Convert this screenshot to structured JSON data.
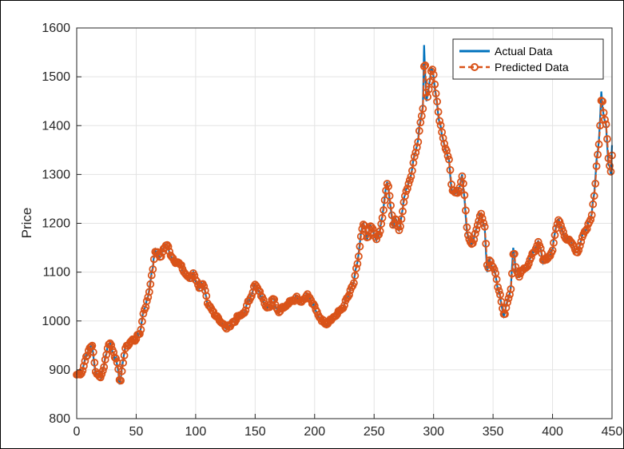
{
  "chart_data": {
    "type": "line",
    "title": "",
    "xlabel": "",
    "ylabel": "Price",
    "xlim": [
      0,
      450
    ],
    "ylim": [
      800,
      1600
    ],
    "xticks": [
      0,
      50,
      100,
      150,
      200,
      250,
      300,
      350,
      400,
      450
    ],
    "yticks": [
      800,
      900,
      1000,
      1100,
      1200,
      1300,
      1400,
      1500,
      1600
    ],
    "grid": true,
    "legend_position": "top-right",
    "series": [
      {
        "name": "Actual Data",
        "color": "#0072BD",
        "style": "solid-line",
        "anchors": [
          [
            0,
            890
          ],
          [
            4,
            895
          ],
          [
            8,
            930
          ],
          [
            11,
            945
          ],
          [
            13,
            950
          ],
          [
            16,
            890
          ],
          [
            19,
            885
          ],
          [
            22,
            900
          ],
          [
            26,
            950
          ],
          [
            28,
            955
          ],
          [
            31,
            935
          ],
          [
            34,
            910
          ],
          [
            36,
            870
          ],
          [
            38,
            905
          ],
          [
            40,
            935
          ],
          [
            42,
            950
          ],
          [
            46,
            960
          ],
          [
            50,
            965
          ],
          [
            53,
            975
          ],
          [
            56,
            1020
          ],
          [
            60,
            1050
          ],
          [
            63,
            1100
          ],
          [
            66,
            1145
          ],
          [
            70,
            1130
          ],
          [
            73,
            1150
          ],
          [
            76,
            1155
          ],
          [
            80,
            1130
          ],
          [
            85,
            1120
          ],
          [
            90,
            1100
          ],
          [
            95,
            1085
          ],
          [
            98,
            1100
          ],
          [
            102,
            1070
          ],
          [
            106,
            1075
          ],
          [
            110,
            1030
          ],
          [
            114,
            1020
          ],
          [
            118,
            1010
          ],
          [
            122,
            995
          ],
          [
            125,
            985
          ],
          [
            130,
            995
          ],
          [
            134,
            1005
          ],
          [
            138,
            1010
          ],
          [
            142,
            1025
          ],
          [
            146,
            1050
          ],
          [
            149,
            1075
          ],
          [
            153,
            1060
          ],
          [
            157,
            1040
          ],
          [
            161,
            1030
          ],
          [
            165,
            1045
          ],
          [
            169,
            1020
          ],
          [
            173,
            1030
          ],
          [
            177,
            1035
          ],
          [
            181,
            1045
          ],
          [
            185,
            1050
          ],
          [
            189,
            1040
          ],
          [
            193,
            1055
          ],
          [
            197,
            1040
          ],
          [
            201,
            1020
          ],
          [
            205,
            1005
          ],
          [
            209,
            995
          ],
          [
            213,
            1005
          ],
          [
            217,
            1010
          ],
          [
            221,
            1020
          ],
          [
            225,
            1035
          ],
          [
            229,
            1055
          ],
          [
            233,
            1080
          ],
          [
            236,
            1120
          ],
          [
            239,
            1180
          ],
          [
            241,
            1200
          ],
          [
            244,
            1165
          ],
          [
            247,
            1195
          ],
          [
            251,
            1170
          ],
          [
            254,
            1175
          ],
          [
            257,
            1215
          ],
          [
            259,
            1255
          ],
          [
            261,
            1285
          ],
          [
            264,
            1230
          ],
          [
            266,
            1190
          ],
          [
            268,
            1210
          ],
          [
            271,
            1185
          ],
          [
            274,
            1230
          ],
          [
            277,
            1270
          ],
          [
            280,
            1290
          ],
          [
            283,
            1330
          ],
          [
            286,
            1360
          ],
          [
            289,
            1410
          ],
          [
            291,
            1440
          ],
          [
            292,
            1565
          ],
          [
            294,
            1450
          ],
          [
            296,
            1480
          ],
          [
            298,
            1520
          ],
          [
            300,
            1500
          ],
          [
            302,
            1460
          ],
          [
            304,
            1420
          ],
          [
            307,
            1380
          ],
          [
            310,
            1350
          ],
          [
            313,
            1330
          ],
          [
            315,
            1270
          ],
          [
            318,
            1260
          ],
          [
            321,
            1270
          ],
          [
            324,
            1300
          ],
          [
            326,
            1250
          ],
          [
            328,
            1180
          ],
          [
            331,
            1160
          ],
          [
            334,
            1170
          ],
          [
            337,
            1200
          ],
          [
            340,
            1220
          ],
          [
            343,
            1190
          ],
          [
            345,
            1100
          ],
          [
            347,
            1130
          ],
          [
            350,
            1110
          ],
          [
            353,
            1080
          ],
          [
            356,
            1050
          ],
          [
            359,
            1010
          ],
          [
            362,
            1040
          ],
          [
            365,
            1070
          ],
          [
            367,
            1150
          ],
          [
            369,
            1100
          ],
          [
            372,
            1090
          ],
          [
            376,
            1110
          ],
          [
            380,
            1120
          ],
          [
            384,
            1140
          ],
          [
            388,
            1165
          ],
          [
            392,
            1120
          ],
          [
            396,
            1130
          ],
          [
            400,
            1145
          ],
          [
            403,
            1195
          ],
          [
            405,
            1210
          ],
          [
            408,
            1185
          ],
          [
            412,
            1165
          ],
          [
            416,
            1160
          ],
          [
            420,
            1140
          ],
          [
            424,
            1165
          ],
          [
            428,
            1185
          ],
          [
            432,
            1210
          ],
          [
            435,
            1260
          ],
          [
            437,
            1330
          ],
          [
            439,
            1370
          ],
          [
            441,
            1470
          ],
          [
            443,
            1420
          ],
          [
            445,
            1400
          ],
          [
            447,
            1320
          ],
          [
            449,
            1300
          ],
          [
            450,
            1360
          ]
        ]
      },
      {
        "name": "Predicted Data",
        "color": "#D95319",
        "style": "dashed-line-with-circle-markers"
      }
    ]
  }
}
